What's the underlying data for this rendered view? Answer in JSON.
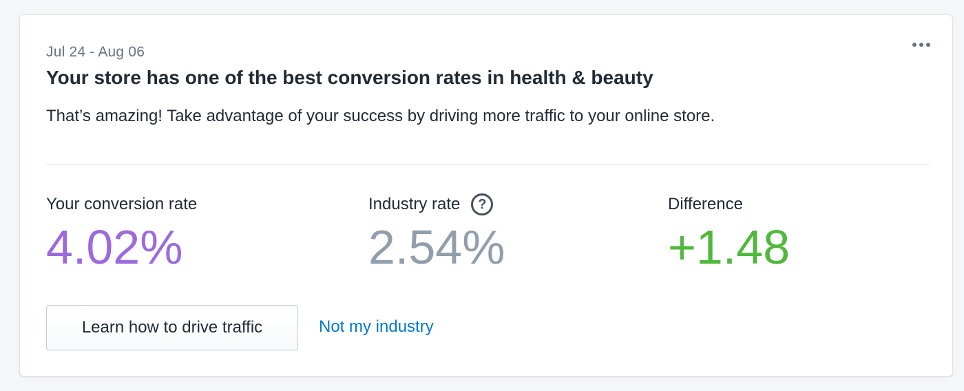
{
  "card": {
    "date_range": "Jul 24 - Aug 06",
    "title": "Your store has one of the best conversion rates in health & beauty",
    "description": "That’s amazing! Take advantage of your success by driving more traffic to your online store.",
    "more_icon": "more-horizontal-icon"
  },
  "metrics": {
    "conversion": {
      "label": "Your conversion rate",
      "value": "4.02%",
      "color": "#9c6ade"
    },
    "industry": {
      "label": "Industry rate",
      "value": "2.54%",
      "color": "#919eab",
      "help_icon": "question-circle-icon",
      "help_glyph": "?"
    },
    "difference": {
      "label": "Difference",
      "value": "+1.48",
      "color": "#50b83c"
    }
  },
  "actions": {
    "primary_button": "Learn how to drive traffic",
    "secondary_link": "Not my industry"
  }
}
